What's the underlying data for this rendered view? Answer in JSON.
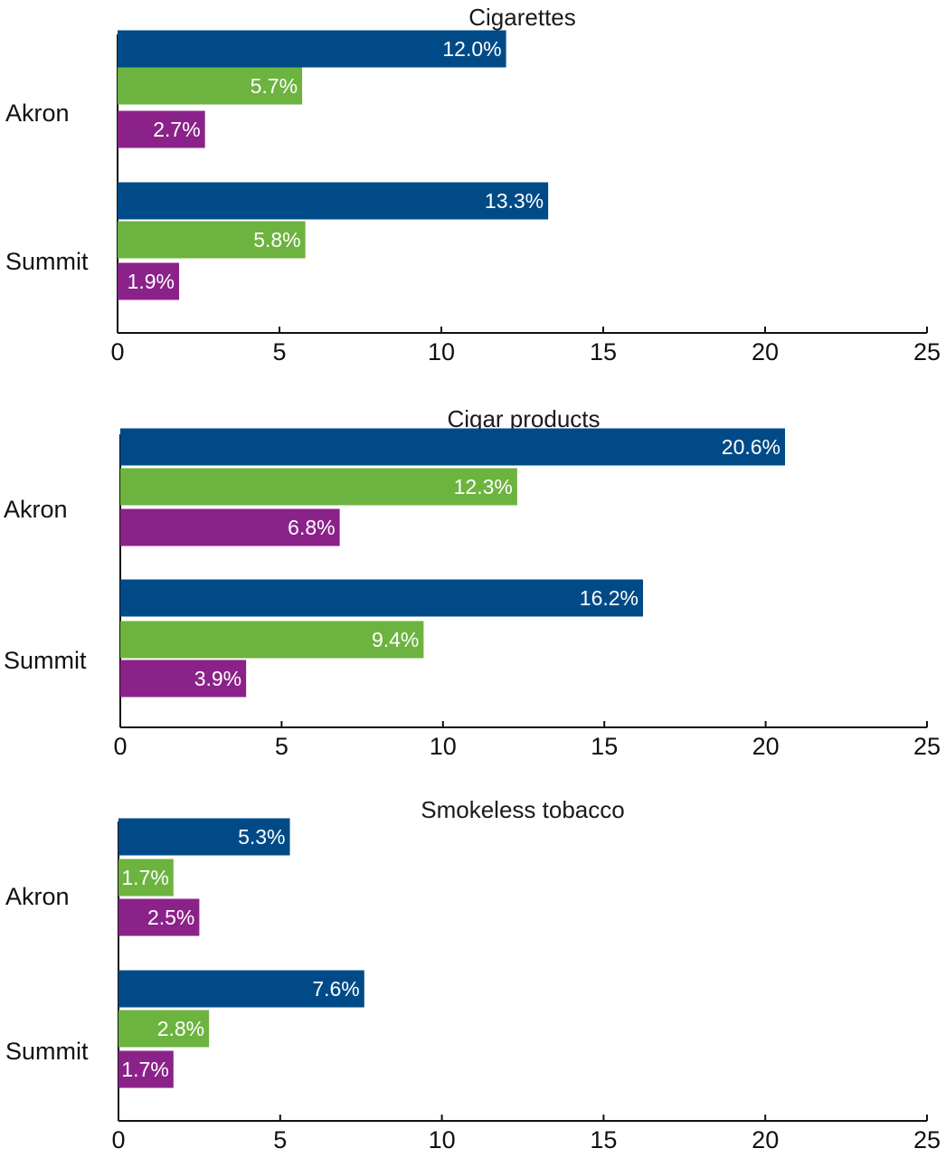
{
  "chart_data": [
    {
      "type": "bar",
      "orientation": "horizontal",
      "title": "Cigarettes",
      "categories": [
        "Akron",
        "Summit"
      ],
      "series": [
        {
          "values": [
            12.0,
            13.3
          ],
          "labels": [
            "12.0%",
            "13.3%"
          ],
          "color": "#004B87"
        },
        {
          "values": [
            5.7,
            5.8
          ],
          "labels": [
            "5.7%",
            "5.8%"
          ],
          "color": "#6DB33F"
        },
        {
          "values": [
            2.7,
            1.9
          ],
          "labels": [
            "2.7%",
            "1.9%"
          ],
          "color": "#8B2289"
        }
      ],
      "xlim": [
        0,
        25
      ],
      "xticks": [
        "0",
        "5",
        "10",
        "15",
        "20",
        "25"
      ],
      "grid": false
    },
    {
      "type": "bar",
      "orientation": "horizontal",
      "title": "Cigar products",
      "categories": [
        "Akron",
        "Summit"
      ],
      "series": [
        {
          "values": [
            20.6,
            16.2
          ],
          "labels": [
            "20.6%",
            "16.2%"
          ],
          "color": "#004B87"
        },
        {
          "values": [
            12.3,
            9.4
          ],
          "labels": [
            "12.3%",
            "9.4%"
          ],
          "color": "#6DB33F"
        },
        {
          "values": [
            6.8,
            3.9
          ],
          "labels": [
            "6.8%",
            "3.9%"
          ],
          "color": "#8B2289"
        }
      ],
      "xlim": [
        0,
        25
      ],
      "xticks": [
        "0",
        "5",
        "10",
        "15",
        "20",
        "25"
      ],
      "grid": false
    },
    {
      "type": "bar",
      "orientation": "horizontal",
      "title": "Smokeless tobacco",
      "categories": [
        "Akron",
        "Summit"
      ],
      "series": [
        {
          "values": [
            5.3,
            7.6
          ],
          "labels": [
            "5.3%",
            "7.6%"
          ],
          "color": "#004B87"
        },
        {
          "values": [
            1.7,
            2.8
          ],
          "labels": [
            "1.7%",
            "2.8%"
          ],
          "color": "#6DB33F"
        },
        {
          "values": [
            2.5,
            1.7
          ],
          "labels": [
            "2.5%",
            "1.7%"
          ],
          "color": "#8B2289"
        }
      ],
      "xlim": [
        0,
        25
      ],
      "xticks": [
        "0",
        "5",
        "10",
        "15",
        "20",
        "25"
      ],
      "grid": false
    }
  ]
}
